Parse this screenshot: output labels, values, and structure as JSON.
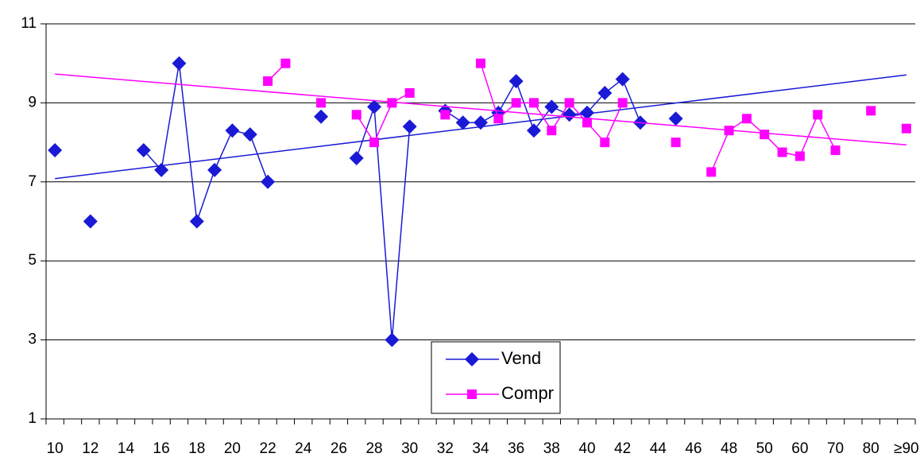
{
  "chart_data": {
    "type": "line",
    "categories": [
      "10",
      null,
      "12",
      null,
      "14",
      null,
      "16",
      null,
      "18",
      null,
      "20",
      null,
      "22",
      null,
      "24",
      null,
      "26",
      null,
      "28",
      null,
      "30",
      null,
      "32",
      null,
      "34",
      null,
      "36",
      null,
      "38",
      null,
      "40",
      null,
      "42",
      null,
      "44",
      null,
      "46",
      null,
      "48",
      null,
      "50",
      null,
      "60",
      null,
      "70",
      null,
      "80",
      null,
      "≥90"
    ],
    "series": [
      {
        "name": "Vend",
        "color": "#1a1ad6",
        "marker": "diamond",
        "trendline": true,
        "values": [
          7.8,
          null,
          6.0,
          null,
          null,
          7.8,
          7.3,
          10,
          6,
          7.3,
          8.3,
          8.2,
          7,
          null,
          null,
          8.65,
          null,
          7.6,
          8.9,
          3,
          8.4,
          null,
          8.8,
          8.5,
          8.5,
          8.75,
          9.55,
          8.3,
          8.9,
          8.7,
          8.75,
          9.25,
          9.6,
          8.5,
          null,
          8.6,
          null,
          null,
          null,
          null,
          null,
          null,
          null,
          null,
          null,
          null,
          null,
          null,
          null
        ]
      },
      {
        "name": "Compr",
        "color": "#ff00ff",
        "marker": "square",
        "trendline": true,
        "values": [
          null,
          null,
          null,
          null,
          null,
          null,
          null,
          null,
          null,
          null,
          null,
          null,
          9.55,
          10,
          null,
          9,
          null,
          8.7,
          8,
          9,
          9.25,
          null,
          8.7,
          null,
          10,
          8.6,
          9,
          9,
          8.3,
          9,
          8.5,
          8,
          9,
          null,
          null,
          8,
          null,
          7.25,
          8.3,
          8.6,
          8.2,
          7.75,
          7.65,
          8.7,
          7.8,
          null,
          8.8,
          null,
          8.35
        ]
      }
    ],
    "ylim": [
      1,
      11
    ],
    "yticks": [
      1,
      3,
      5,
      7,
      9,
      11
    ],
    "grid": true,
    "legend_position": "bottom"
  }
}
